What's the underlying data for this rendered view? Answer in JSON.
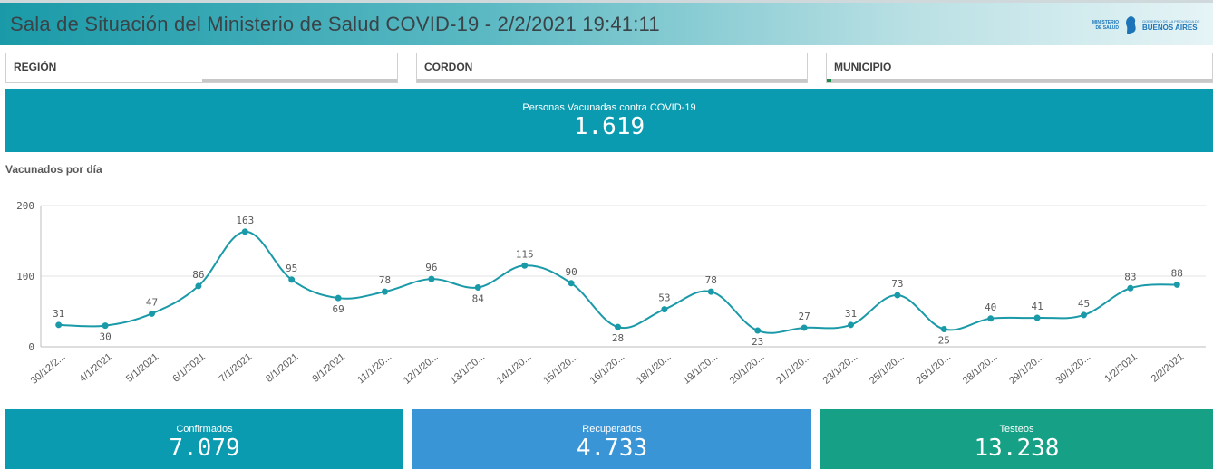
{
  "header": {
    "title": "Sala de Situación del Ministerio de Salud COVID-19 - 2/2/2021 19:41:11",
    "logo_ministerio": "MINISTERIO DE SALUD",
    "logo_gob_small": "GOBIERNO DE LA PROVINCIA DE",
    "logo_gob_big": "BUENOS AIRES"
  },
  "filters": [
    {
      "label": "REGIÓN"
    },
    {
      "label": "CORDON"
    },
    {
      "label": "MUNICIPIO"
    }
  ],
  "kpi_top": {
    "title": "Personas Vacunadas contra COVID-19",
    "value": "1.619"
  },
  "chart_title": "Vacunados por día",
  "kpis": [
    {
      "title": "Confirmados",
      "value": "7.079",
      "color": "#0b9bb0"
    },
    {
      "title": "Recuperados",
      "value": "4.733",
      "color": "#3a95d6"
    },
    {
      "title": "Testeos",
      "value": "13.238",
      "color": "#16a085"
    }
  ],
  "chart_data": {
    "type": "line",
    "title": "Vacunados por día",
    "x": [
      "30/12/2...",
      "4/1/2021",
      "5/1/2021",
      "6/1/2021",
      "7/1/2021",
      "8/1/2021",
      "9/1/2021",
      "11/1/20...",
      "12/1/20...",
      "13/1/20...",
      "14/1/20...",
      "15/1/20...",
      "16/1/20...",
      "18/1/20...",
      "19/1/20...",
      "20/1/20...",
      "21/1/20...",
      "23/1/20...",
      "25/1/20...",
      "26/1/20...",
      "28/1/20...",
      "29/1/20...",
      "30/1/20...",
      "1/2/2021",
      "2/2/2021"
    ],
    "values": [
      31,
      30,
      47,
      86,
      163,
      95,
      69,
      78,
      96,
      84,
      115,
      90,
      28,
      53,
      78,
      23,
      27,
      31,
      73,
      25,
      40,
      41,
      45,
      83,
      88
    ],
    "labels": [
      "31",
      "30",
      "47",
      "86",
      "163",
      "95",
      "69",
      "78",
      "96",
      "84",
      "115",
      "90",
      "28",
      "53",
      "78",
      "23",
      "27",
      "31",
      "73",
      "25",
      "40",
      "41",
      "45",
      "83",
      "88"
    ],
    "yticks": [
      "0",
      "100",
      "200"
    ],
    "ylim": [
      0,
      200
    ],
    "grid": true,
    "line_color": "#1a9aa8"
  }
}
